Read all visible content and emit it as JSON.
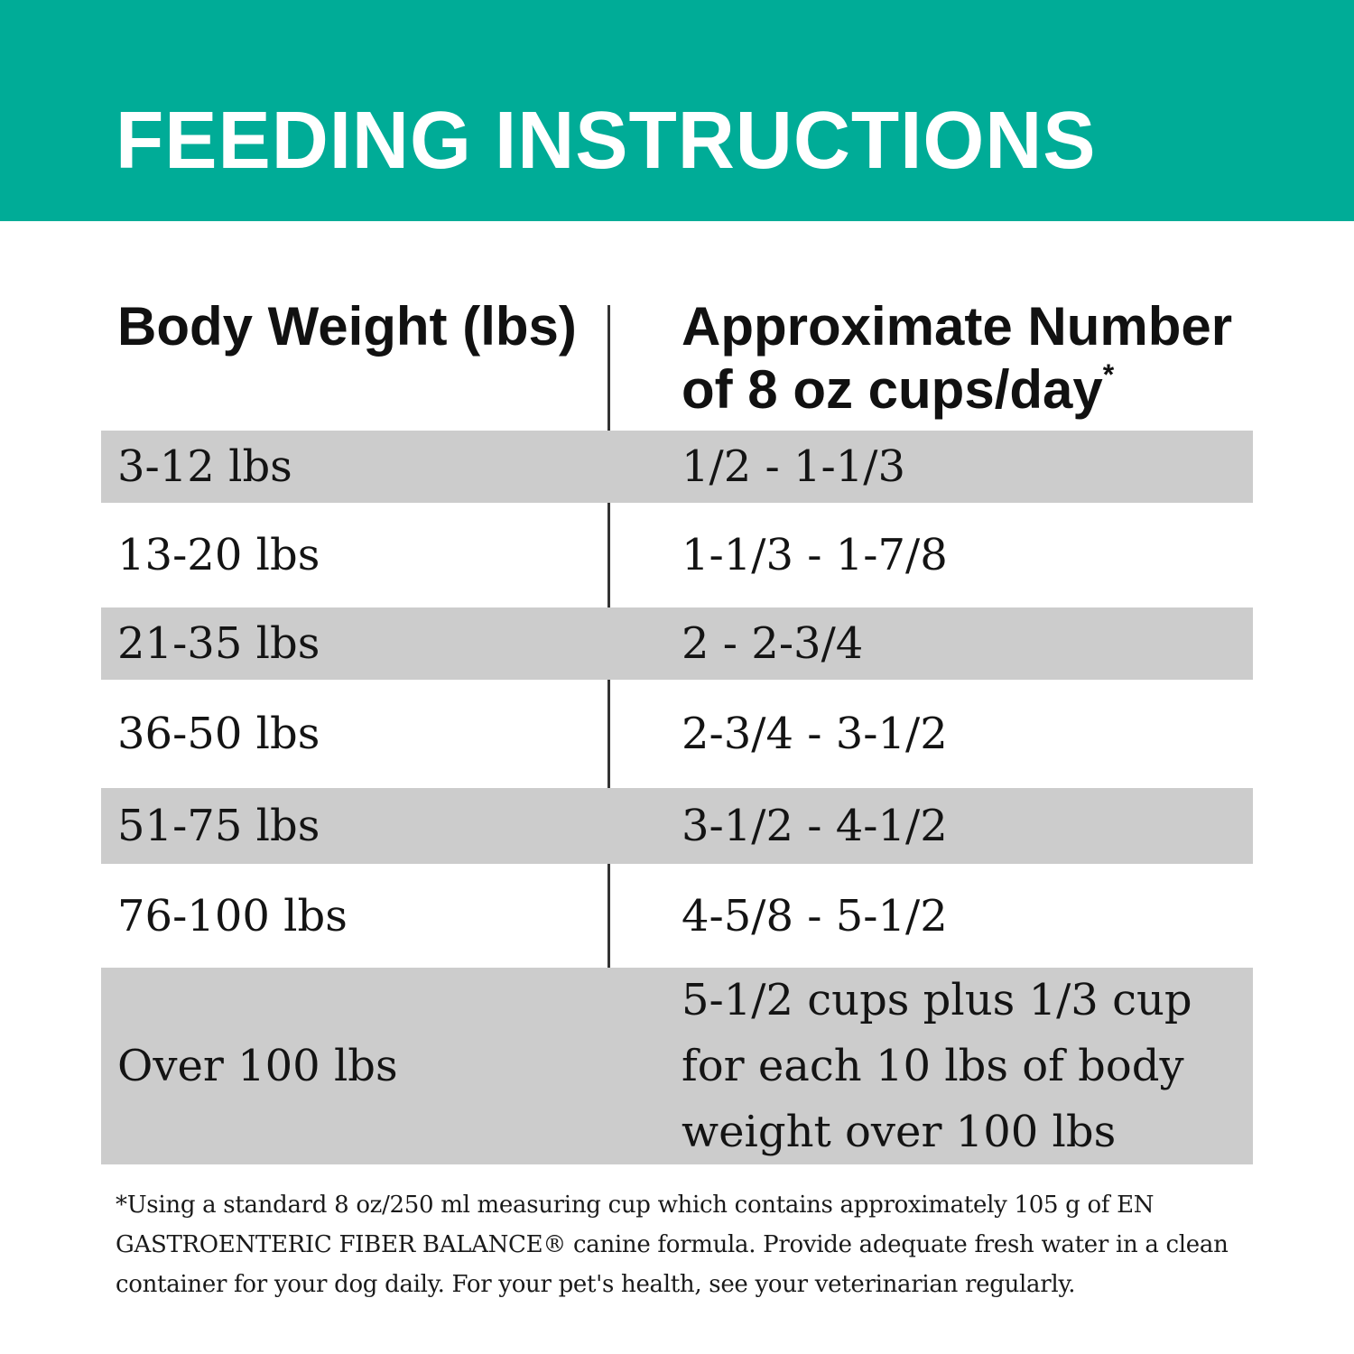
{
  "header": {
    "title": "FEEDING INSTRUCTIONS"
  },
  "table": {
    "col1_header": "Body Weight (lbs)",
    "col2_header_line1": "Approximate Number",
    "col2_header_line2": "of 8 oz cups/day",
    "col2_footnote_marker": "*",
    "rows": [
      {
        "weight": "3-12 lbs",
        "cups": "1/2 - 1-1/3"
      },
      {
        "weight": "13-20 lbs",
        "cups": "1-1/3 - 1-7/8"
      },
      {
        "weight": "21-35 lbs",
        "cups": "2 - 2-3/4"
      },
      {
        "weight": "36-50 lbs",
        "cups": "2-3/4 - 3-1/2"
      },
      {
        "weight": "51-75 lbs",
        "cups": "3-1/2 - 4-1/2"
      },
      {
        "weight": "76-100 lbs",
        "cups": "4-5/8 - 5-1/2"
      },
      {
        "weight": "Over 100 lbs",
        "cups": "5-1/2 cups plus 1/3 cup for each 10 lbs of body weight over 100 lbs"
      }
    ]
  },
  "footnote": "*Using a standard 8 oz/250 ml measuring cup which contains approximately 105 g of EN GASTROENTERIC FIBER BALANCE® canine formula. Provide adequate fresh water in a clean container for your dog daily. For your pet's health, see your veterinarian regularly.",
  "colors": {
    "accent_teal": "#00ac97",
    "row_shade_gray": "#cccccc",
    "divider": "#333333",
    "title_text": "#ffffff",
    "body_text": "#141414"
  }
}
